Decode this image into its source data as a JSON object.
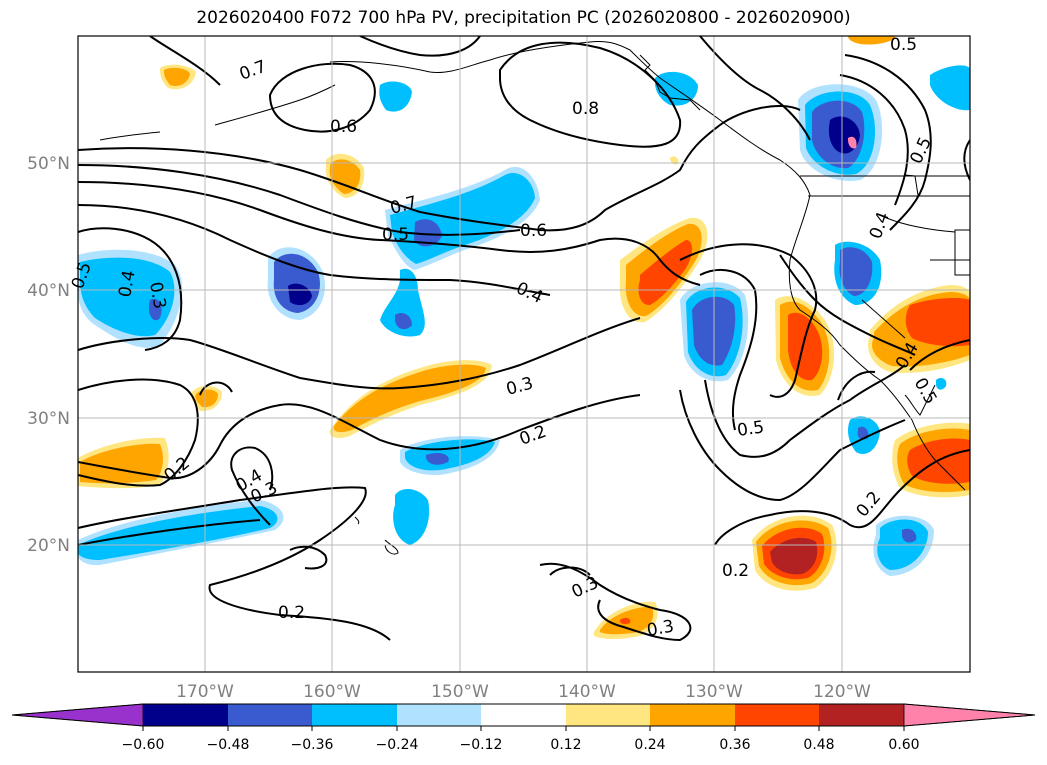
{
  "title": "2026020400 F072 700 hPa PV, precipitation PC (2026020800 - 2026020900)",
  "map": {
    "lat_labels": [
      "50°N",
      "40°N",
      "30°N",
      "20°N"
    ],
    "lon_labels": [
      "170°W",
      "160°W",
      "150°W",
      "140°W",
      "130°W",
      "120°W"
    ],
    "extent": {
      "lon_min": -180,
      "lon_max": -110,
      "lat_min": 10,
      "lat_max": 60
    },
    "pv_contour_labels": [
      "0.7",
      "0.6",
      "0.8",
      "0.5",
      "0.7",
      "0.5",
      "0.6",
      "0.4",
      "0.5",
      "0.4",
      "0.3",
      "0.3",
      "0.2",
      "0.5",
      "0.4",
      "0.5",
      "0.4",
      "0.2",
      "0.4",
      "0.3",
      "0.2",
      "0.3",
      "0.3",
      "0.2",
      "0.2",
      "0.5"
    ]
  },
  "colorbar": {
    "ticks": [
      "−0.60",
      "−0.48",
      "−0.36",
      "−0.24",
      "−0.12",
      "0.12",
      "0.24",
      "0.36",
      "0.48",
      "0.60"
    ],
    "colors": [
      "#9932cc",
      "#00008b",
      "#3a5bcf",
      "#00bfff",
      "#b0e2ff",
      "#ffffff",
      "#ffe680",
      "#ffa500",
      "#ff4500",
      "#b22222",
      "#ff82ab"
    ]
  }
}
